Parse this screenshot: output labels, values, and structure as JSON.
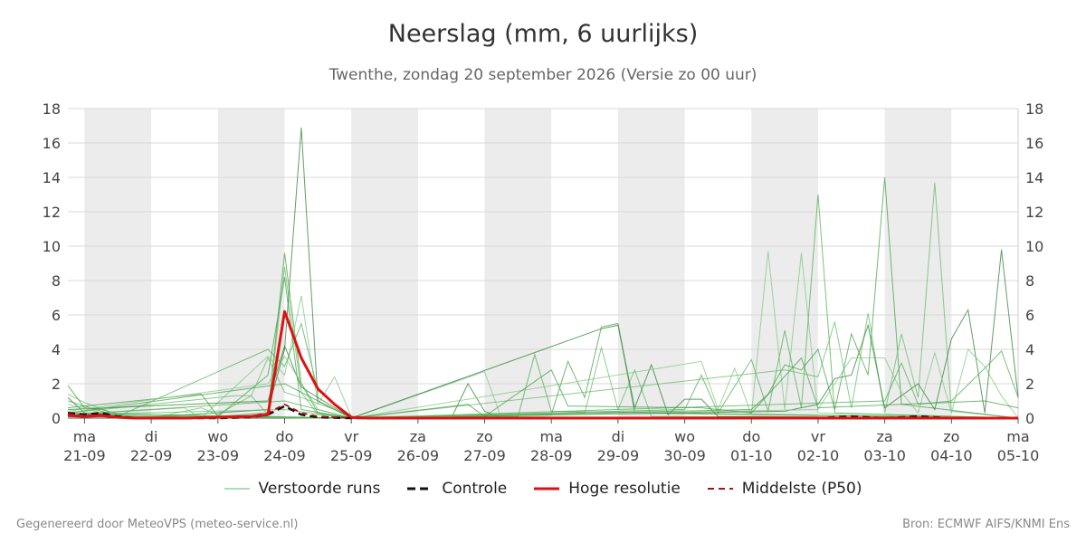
{
  "header": {
    "title": "Neerslag (mm, 6 uurlijks)",
    "subtitle": "Twenthe, zondag 20 september 2026 (Versie zo 00 uur)"
  },
  "footer": {
    "left": "Gegenereerd door MeteoVPS (meteo-service.nl)",
    "right": "Bron: ECMWF AIFS/KNMI Ens"
  },
  "legend": [
    {
      "label": "Verstoorde runs",
      "color": "#5cb85c",
      "style": "solid-thin"
    },
    {
      "label": "Controle",
      "color": "#111111",
      "style": "dashed-thick"
    },
    {
      "label": "Hoge resolutie",
      "color": "#dd1111",
      "style": "solid-thick"
    },
    {
      "label": "Middelste (P50)",
      "color": "#aa1111",
      "style": "dashed-thin"
    }
  ],
  "chart_data": {
    "type": "line",
    "title": "Neerslag (mm, 6 uurlijks)",
    "xlim": [
      0.75,
      15.0
    ],
    "ylim": [
      0,
      18
    ],
    "yticks": [
      0,
      2,
      4,
      6,
      8,
      10,
      12,
      14,
      16,
      18
    ],
    "grid": true,
    "legend_position": "bottom",
    "x_ticks": [
      {
        "day": "ma",
        "date": "21-09"
      },
      {
        "day": "di",
        "date": "22-09"
      },
      {
        "day": "wo",
        "date": "23-09"
      },
      {
        "day": "do",
        "date": "24-09"
      },
      {
        "day": "vr",
        "date": "25-09"
      },
      {
        "day": "za",
        "date": "26-09"
      },
      {
        "day": "zo",
        "date": "27-09"
      },
      {
        "day": "ma",
        "date": "28-09"
      },
      {
        "day": "di",
        "date": "29-09"
      },
      {
        "day": "wo",
        "date": "30-09"
      },
      {
        "day": "do",
        "date": "01-10"
      },
      {
        "day": "vr",
        "date": "02-10"
      },
      {
        "day": "za",
        "date": "03-10"
      },
      {
        "day": "zo",
        "date": "04-10"
      },
      {
        "day": "ma",
        "date": "05-10"
      }
    ],
    "shaded_days": [
      [
        1,
        2
      ],
      [
        3,
        4
      ],
      [
        5,
        6
      ],
      [
        7,
        8
      ],
      [
        9,
        10
      ],
      [
        11,
        12
      ],
      [
        13,
        14
      ]
    ],
    "series": [
      {
        "name": "Hoge resolutie",
        "color": "#dd1111",
        "width": 3,
        "dash": "",
        "x": [
          0.75,
          1.0,
          1.25,
          1.5,
          1.75,
          2.0,
          2.5,
          3.0,
          3.5,
          3.75,
          4.0,
          4.25,
          4.5,
          4.75,
          5.0,
          5.25,
          5.5,
          6.0,
          6.5,
          7.0,
          8.0,
          9.0,
          10.0,
          11.0,
          12.0,
          13.0,
          14.0,
          15.0
        ],
        "y": [
          0.15,
          0.1,
          0.15,
          0.05,
          0.0,
          0.0,
          0.0,
          0.05,
          0.1,
          0.2,
          6.2,
          3.5,
          1.7,
          0.8,
          0.05,
          0.0,
          0.0,
          0.0,
          0.0,
          0.0,
          0.0,
          0.0,
          0.0,
          0.0,
          0.0,
          0.0,
          0.0,
          0.0
        ]
      },
      {
        "name": "Controle",
        "color": "#111111",
        "width": 2.5,
        "dash": "8,5",
        "x": [
          0.75,
          1.0,
          1.25,
          1.5,
          1.75,
          2.0,
          3.0,
          3.5,
          3.75,
          4.0,
          4.25,
          4.5,
          5.0,
          6.0,
          7.0,
          8.0,
          9.0,
          10.0,
          11.0,
          12.0,
          12.5,
          13.0,
          13.5,
          14.0,
          15.0
        ],
        "y": [
          0.3,
          0.2,
          0.3,
          0.1,
          0.0,
          0.0,
          0.0,
          0.05,
          0.2,
          0.7,
          0.2,
          0.05,
          0.0,
          0.0,
          0.0,
          0.0,
          0.0,
          0.0,
          0.0,
          0.0,
          0.1,
          0.0,
          0.1,
          0.0,
          0.0
        ]
      },
      {
        "name": "Middelste (P50)",
        "color": "#aa1111",
        "width": 1.8,
        "dash": "6,5",
        "x": [
          0.75,
          1.0,
          1.25,
          1.5,
          2.0,
          3.0,
          3.5,
          3.75,
          4.0,
          4.25,
          4.5,
          5.0,
          6.0,
          7.0,
          8.0,
          9.0,
          10.0,
          11.0,
          12.0,
          13.0,
          14.0,
          15.0
        ],
        "y": [
          0.25,
          0.15,
          0.2,
          0.05,
          0.0,
          0.05,
          0.1,
          0.3,
          0.8,
          0.3,
          0.1,
          0.0,
          0.0,
          0.0,
          0.0,
          0.0,
          0.0,
          0.0,
          0.0,
          0.0,
          0.0,
          0.0
        ]
      }
    ],
    "ensemble": {
      "name": "Verstoorde runs",
      "color": "#4caf50",
      "opacity": 0.75,
      "runs": [
        [
          [
            0.75,
            1.9
          ],
          [
            1.0,
            0.6
          ],
          [
            1.25,
            0.5
          ],
          [
            1.75,
            0.0
          ],
          [
            3.0,
            0.1
          ],
          [
            3.75,
            0.3
          ],
          [
            4.0,
            9.6
          ],
          [
            4.25,
            2.0
          ],
          [
            4.5,
            0.3
          ],
          [
            5.0,
            0.0
          ],
          [
            15.0,
            0.0
          ]
        ],
        [
          [
            0.75,
            1.4
          ],
          [
            1.0,
            0.9
          ],
          [
            1.5,
            0.2
          ],
          [
            2.0,
            0.0
          ],
          [
            2.75,
            0.6
          ],
          [
            3.0,
            0.2
          ],
          [
            3.5,
            1.3
          ],
          [
            3.75,
            0.2
          ],
          [
            4.0,
            8.8
          ],
          [
            4.25,
            1.5
          ],
          [
            4.5,
            0.2
          ],
          [
            5.0,
            0.0
          ],
          [
            15.0,
            0.0
          ]
        ],
        [
          [
            0.75,
            1.2
          ],
          [
            1.0,
            0.3
          ],
          [
            1.75,
            0.0
          ],
          [
            3.75,
            0.5
          ],
          [
            4.0,
            4.0
          ],
          [
            4.25,
            16.9
          ],
          [
            4.5,
            1.0
          ],
          [
            5.0,
            0.0
          ],
          [
            15.0,
            0.0
          ]
        ],
        [
          [
            0.75,
            0.8
          ],
          [
            1.25,
            0.3
          ],
          [
            2.5,
            0.6
          ],
          [
            2.75,
            0.0
          ],
          [
            3.75,
            3.6
          ],
          [
            4.0,
            2.5
          ],
          [
            4.25,
            7.1
          ],
          [
            4.5,
            0.8
          ],
          [
            4.75,
            2.4
          ],
          [
            5.0,
            0.1
          ],
          [
            15.0,
            0.0
          ]
        ],
        [
          [
            0.75,
            1.0
          ],
          [
            1.5,
            0.1
          ],
          [
            3.75,
            4.0
          ],
          [
            4.0,
            3.0
          ],
          [
            4.25,
            5.5
          ],
          [
            4.5,
            1.6
          ],
          [
            5.0,
            0.0
          ],
          [
            15.0,
            0.0
          ]
        ],
        [
          [
            0.75,
            0.6
          ],
          [
            2.75,
            1.4
          ],
          [
            3.0,
            0.1
          ],
          [
            3.75,
            2.5
          ],
          [
            4.0,
            8.2
          ],
          [
            4.25,
            0.5
          ],
          [
            5.0,
            0.0
          ],
          [
            15.0,
            0.0
          ]
        ],
        [
          [
            0.75,
            0.3
          ],
          [
            3.25,
            1.3
          ],
          [
            3.5,
            1.3
          ],
          [
            3.75,
            3.5
          ],
          [
            4.0,
            1.5
          ],
          [
            4.25,
            1.2
          ],
          [
            4.75,
            0.5
          ],
          [
            5.0,
            0.0
          ],
          [
            15.0,
            0.0
          ]
        ],
        [
          [
            0.75,
            0.5
          ],
          [
            3.75,
            1.0
          ],
          [
            4.0,
            4.2
          ],
          [
            4.25,
            1.8
          ],
          [
            5.0,
            0.0
          ],
          [
            6.5,
            0.0
          ],
          [
            6.75,
            2.0
          ],
          [
            7.0,
            0.4
          ],
          [
            7.25,
            0.0
          ],
          [
            15.0,
            0.0
          ]
        ],
        [
          [
            0.75,
            0.4
          ],
          [
            3.75,
            2.0
          ],
          [
            4.0,
            3.6
          ],
          [
            4.5,
            0.5
          ],
          [
            5.0,
            0.0
          ],
          [
            7.0,
            2.7
          ],
          [
            7.25,
            0.0
          ],
          [
            15.0,
            0.0
          ]
        ],
        [
          [
            0.75,
            0.2
          ],
          [
            4.0,
            1.0
          ],
          [
            5.0,
            0.0
          ],
          [
            7.5,
            0.1
          ],
          [
            7.75,
            3.7
          ],
          [
            8.0,
            0.4
          ],
          [
            15.0,
            0.0
          ]
        ],
        [
          [
            0.75,
            0.3
          ],
          [
            4.0,
            2.0
          ],
          [
            5.0,
            0.0
          ],
          [
            8.0,
            0.2
          ],
          [
            8.25,
            3.3
          ],
          [
            8.5,
            1.2
          ],
          [
            8.75,
            5.3
          ],
          [
            9.0,
            5.5
          ],
          [
            9.25,
            0.3
          ],
          [
            15.0,
            0.0
          ]
        ],
        [
          [
            0.75,
            0.2
          ],
          [
            4.0,
            0.5
          ],
          [
            5.0,
            0.0
          ],
          [
            8.5,
            0.3
          ],
          [
            8.75,
            4.1
          ],
          [
            9.0,
            0.5
          ],
          [
            9.25,
            2.8
          ],
          [
            9.5,
            0.1
          ],
          [
            15.0,
            0.0
          ]
        ],
        [
          [
            0.75,
            0.1
          ],
          [
            5.0,
            0.0
          ],
          [
            8.75,
            5.2
          ],
          [
            9.0,
            5.4
          ],
          [
            9.25,
            0.6
          ],
          [
            9.5,
            3.1
          ],
          [
            9.75,
            0.2
          ],
          [
            10.0,
            1.1
          ],
          [
            10.25,
            1.1
          ],
          [
            10.5,
            0.1
          ],
          [
            15.0,
            0.0
          ]
        ],
        [
          [
            0.75,
            0.1
          ],
          [
            5.0,
            0.0
          ],
          [
            10.25,
            3.3
          ],
          [
            10.5,
            0.5
          ],
          [
            10.75,
            2.9
          ],
          [
            11.0,
            0.2
          ],
          [
            11.25,
            9.7
          ],
          [
            11.5,
            0.5
          ],
          [
            11.75,
            9.6
          ],
          [
            12.0,
            0.3
          ],
          [
            15.0,
            0.0
          ]
        ],
        [
          [
            0.75,
            0.1
          ],
          [
            5.0,
            0.0
          ],
          [
            10.0,
            0.5
          ],
          [
            10.25,
            2.5
          ],
          [
            10.5,
            0.3
          ],
          [
            11.0,
            3.4
          ],
          [
            11.25,
            0.4
          ],
          [
            11.5,
            5.1
          ],
          [
            11.75,
            0.6
          ],
          [
            12.0,
            13.0
          ],
          [
            12.25,
            0.3
          ],
          [
            15.0,
            0.0
          ]
        ],
        [
          [
            0.75,
            0.1
          ],
          [
            5.0,
            0.0
          ],
          [
            11.0,
            0.5
          ],
          [
            11.25,
            1.4
          ],
          [
            11.5,
            3.1
          ],
          [
            11.75,
            2.8
          ],
          [
            12.0,
            4.0
          ],
          [
            12.25,
            0.5
          ],
          [
            12.5,
            4.9
          ],
          [
            12.75,
            2.5
          ],
          [
            13.0,
            14.0
          ],
          [
            13.25,
            0.8
          ],
          [
            15.0,
            0.0
          ]
        ],
        [
          [
            0.75,
            0.1
          ],
          [
            5.0,
            0.0
          ],
          [
            11.5,
            2.8
          ],
          [
            11.75,
            2.6
          ],
          [
            12.0,
            2.4
          ],
          [
            12.25,
            5.6
          ],
          [
            12.5,
            0.6
          ],
          [
            12.75,
            6.1
          ],
          [
            13.0,
            0.3
          ],
          [
            13.25,
            4.9
          ],
          [
            13.5,
            1.2
          ],
          [
            13.75,
            13.7
          ],
          [
            14.0,
            0.4
          ],
          [
            15.0,
            0.0
          ]
        ],
        [
          [
            0.75,
            0.1
          ],
          [
            5.0,
            0.0
          ],
          [
            11.5,
            0.4
          ],
          [
            12.0,
            0.8
          ],
          [
            12.25,
            2.3
          ],
          [
            12.5,
            2.5
          ],
          [
            12.75,
            5.4
          ],
          [
            13.0,
            0.6
          ],
          [
            13.5,
            2.0
          ],
          [
            13.75,
            0.5
          ],
          [
            14.0,
            4.6
          ],
          [
            14.25,
            6.3
          ],
          [
            14.5,
            0.3
          ],
          [
            14.75,
            9.8
          ],
          [
            15.0,
            1.2
          ]
        ],
        [
          [
            0.75,
            0.1
          ],
          [
            5.0,
            0.0
          ],
          [
            12.0,
            0.5
          ],
          [
            12.5,
            3.5
          ],
          [
            13.0,
            3.5
          ],
          [
            13.25,
            1.5
          ],
          [
            13.5,
            0.3
          ],
          [
            13.75,
            3.8
          ],
          [
            14.0,
            0.3
          ],
          [
            14.25,
            4.0
          ],
          [
            14.5,
            3.0
          ],
          [
            14.75,
            1.3
          ],
          [
            15.0,
            0.0
          ]
        ],
        [
          [
            0.75,
            0.2
          ],
          [
            5.0,
            0.0
          ],
          [
            13.0,
            1.0
          ],
          [
            13.25,
            3.2
          ],
          [
            13.5,
            0.8
          ],
          [
            14.0,
            1.0
          ],
          [
            14.5,
            2.9
          ],
          [
            14.75,
            3.9
          ],
          [
            15.0,
            1.2
          ]
        ],
        [
          [
            0.75,
            0.3
          ],
          [
            5.0,
            0.0
          ],
          [
            6.75,
            0.8
          ],
          [
            7.0,
            0.1
          ],
          [
            8.0,
            2.8
          ],
          [
            8.25,
            0.7
          ],
          [
            10.25,
            0.6
          ],
          [
            11.0,
            0.3
          ],
          [
            11.75,
            3.5
          ],
          [
            12.0,
            0.6
          ],
          [
            14.5,
            1.0
          ],
          [
            15.0,
            0.6
          ]
        ]
      ]
    }
  }
}
